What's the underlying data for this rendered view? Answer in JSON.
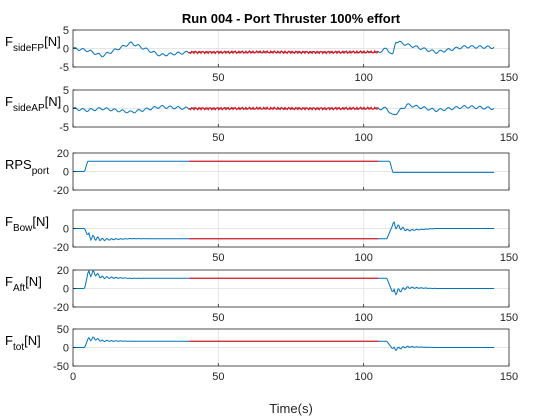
{
  "chart_data": {
    "type": "line",
    "title": "Run 004 - Port Thruster 100% effort",
    "xlabel": "Time(s)",
    "xlim": [
      0,
      150
    ],
    "xticks": [
      0,
      50,
      100,
      150
    ],
    "highlight_range": [
      40,
      105
    ],
    "colors": {
      "signal": "#0072bd",
      "highlight": "#ff0000",
      "grid": "#e6e6e6",
      "axis": "#262626"
    },
    "panels": [
      {
        "ylabel_main": "F",
        "ylabel_sub": "sideFP",
        "ylabel_unit": "[N]",
        "ylim": [
          -5,
          5
        ],
        "yticks": [
          -5,
          0,
          5
        ],
        "xtick_labels_shown": [
          "50",
          "100",
          "150"
        ],
        "samples": {
          "t": [
            0,
            5,
            10,
            20,
            30,
            40,
            60,
            80,
            100,
            105,
            108,
            110,
            111,
            115,
            125,
            135,
            145
          ],
          "y": [
            0,
            -0.5,
            -2,
            1.5,
            -1.8,
            -1,
            -1,
            -1,
            -1,
            -1,
            0,
            -2,
            2,
            1,
            -1,
            0.5,
            0.3
          ]
        }
      },
      {
        "ylabel_main": "F",
        "ylabel_sub": "sideAP",
        "ylabel_unit": "[N]",
        "ylim": [
          -5,
          5
        ],
        "yticks": [
          -5,
          0,
          5
        ],
        "xtick_labels_shown": [
          "50",
          "100",
          "150"
        ],
        "samples": {
          "t": [
            0,
            5,
            10,
            20,
            30,
            40,
            60,
            80,
            100,
            105,
            108,
            110,
            115,
            125,
            135,
            145
          ],
          "y": [
            0,
            -0.5,
            0,
            -1,
            0.5,
            0,
            0,
            0,
            0,
            0,
            0,
            -2,
            1,
            -0.5,
            0.5,
            0
          ]
        }
      },
      {
        "ylabel_main": "RPS",
        "ylabel_sub": "port",
        "ylabel_unit": "",
        "ylim": [
          -20,
          20
        ],
        "yticks": [
          -20,
          0,
          20
        ],
        "xtick_labels_shown": [],
        "samples": {
          "t": [
            0,
            4,
            5,
            109,
            110,
            145
          ],
          "y": [
            0,
            0,
            11,
            11,
            -1,
            -1
          ]
        }
      },
      {
        "ylabel_main": "F",
        "ylabel_sub": "Bow",
        "ylabel_unit": "[N]",
        "ylim": [
          -20,
          20
        ],
        "yticks": [
          -20,
          0
        ],
        "xtick_labels_shown": [
          "50",
          "100",
          "150"
        ],
        "samples": {
          "t": [
            0,
            4,
            5,
            7,
            10,
            20,
            40,
            105,
            108,
            110,
            115,
            125,
            145
          ],
          "y": [
            0,
            0,
            -8,
            -10,
            -12,
            -11,
            -11,
            -11,
            -11,
            4,
            -2,
            0,
            0
          ]
        }
      },
      {
        "ylabel_main": "F",
        "ylabel_sub": "Aft",
        "ylabel_unit": "[N]",
        "ylim": [
          -20,
          20
        ],
        "yticks": [
          -20,
          0,
          20
        ],
        "xtick_labels_shown": [
          "50",
          "100",
          "150"
        ],
        "samples": {
          "t": [
            0,
            4,
            5,
            7,
            10,
            20,
            40,
            105,
            108,
            110,
            115,
            125,
            145
          ],
          "y": [
            0,
            0,
            15,
            17,
            12,
            11,
            11,
            11,
            11,
            -5,
            1,
            0,
            0
          ]
        }
      },
      {
        "ylabel_main": "F",
        "ylabel_sub": "tot",
        "ylabel_unit": "[N]",
        "ylim": [
          -50,
          50
        ],
        "yticks": [
          -50,
          0,
          50
        ],
        "xtick_labels_shown": [
          "0",
          "50",
          "100",
          "150"
        ],
        "samples": {
          "t": [
            0,
            4,
            5,
            7,
            10,
            20,
            40,
            105,
            108,
            110,
            115,
            125,
            145
          ],
          "y": [
            0,
            0,
            20,
            25,
            18,
            17,
            17,
            17,
            17,
            -5,
            2,
            0,
            0
          ]
        }
      }
    ]
  }
}
